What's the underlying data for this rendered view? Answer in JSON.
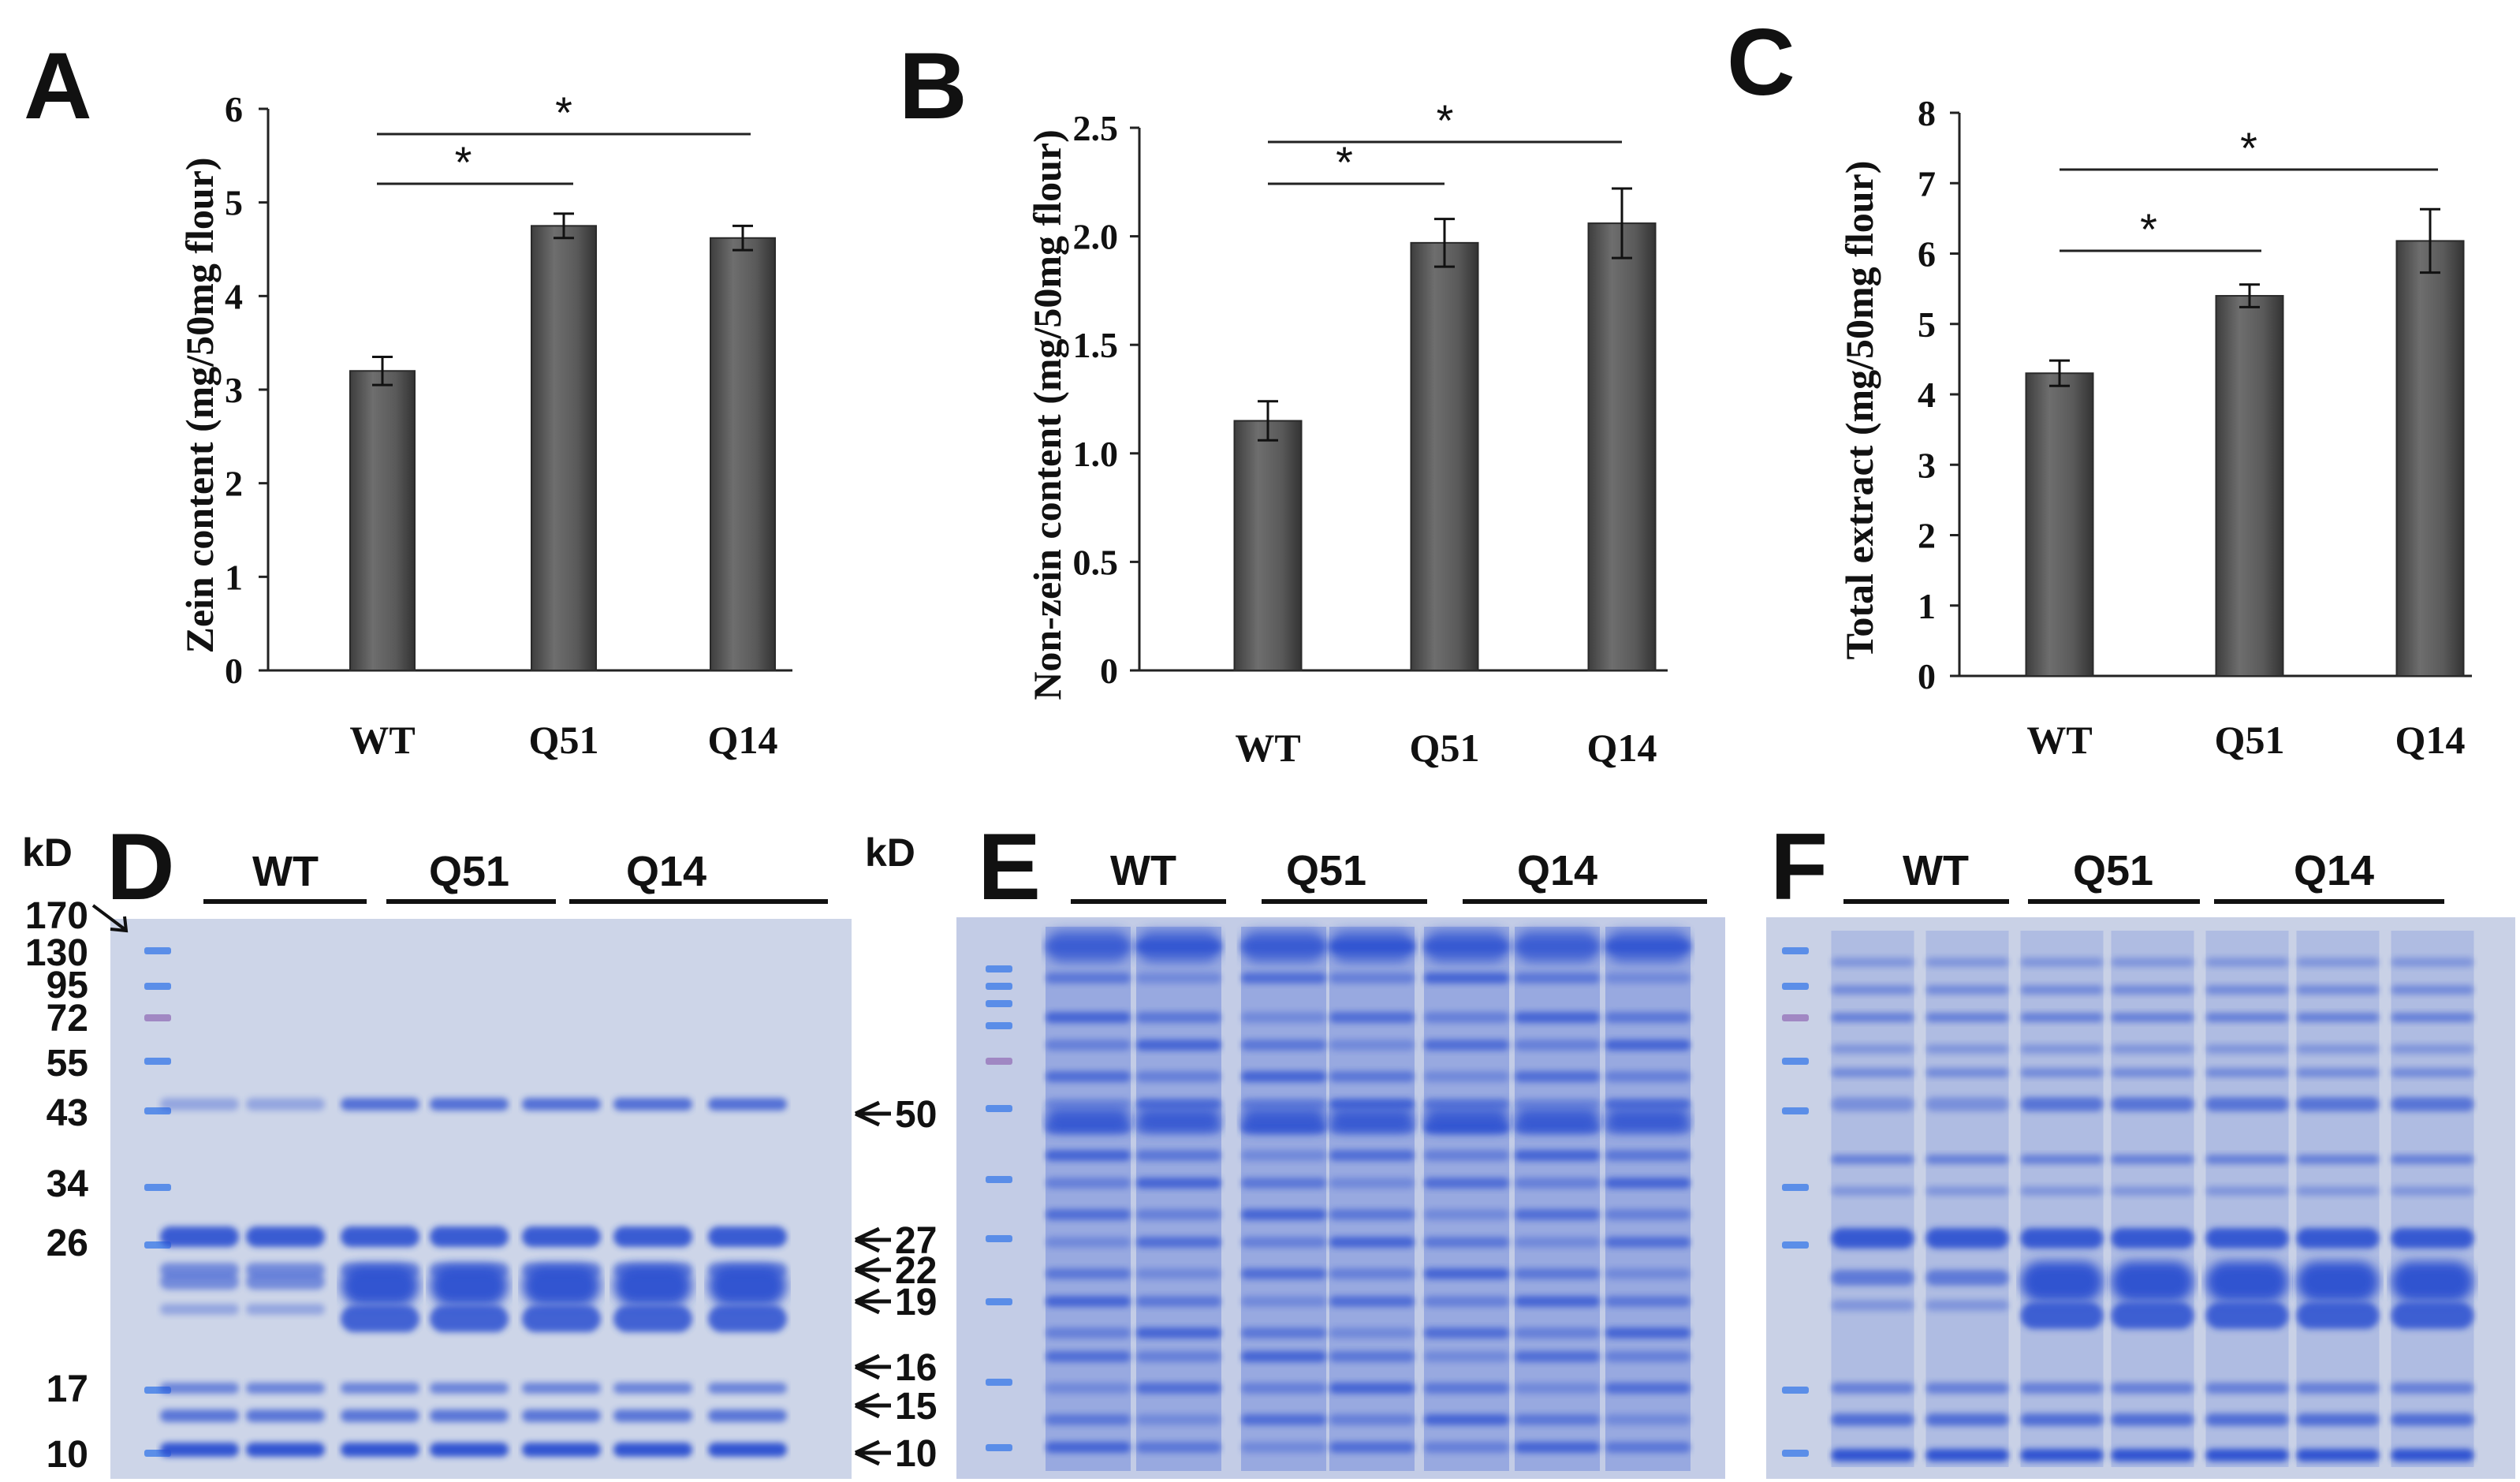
{
  "figure": {
    "colors": {
      "bar": "#5c5c5c",
      "axis": "#222222",
      "gel_background": "#c9d2e6",
      "band": "#2b4fd0",
      "ladder": "#4f86e8",
      "ladder_pink": "#9c7fbf"
    },
    "chart_data": [
      {
        "panel": "A",
        "type": "bar",
        "categories": [
          "WT",
          "Q51",
          "Q14"
        ],
        "values": [
          3.2,
          4.75,
          4.62
        ],
        "errors": [
          0.15,
          0.13,
          0.13
        ],
        "ylabel": "Zein content (mg/50mg flour)",
        "ylim": [
          0,
          6
        ],
        "yticks": [
          0,
          1,
          2,
          3,
          4,
          5,
          6
        ],
        "ytick_labels": [
          "0",
          "1",
          "2",
          "3",
          "4",
          "5",
          "6"
        ],
        "significance": [
          {
            "from": "WT",
            "to": "Q51",
            "label": "*"
          },
          {
            "from": "WT",
            "to": "Q14",
            "label": "*"
          }
        ]
      },
      {
        "panel": "B",
        "type": "bar",
        "categories": [
          "WT",
          "Q51",
          "Q14"
        ],
        "values": [
          1.15,
          1.97,
          2.06
        ],
        "errors": [
          0.09,
          0.11,
          0.16
        ],
        "ylabel": "Non-zein content (mg/50mg flour)",
        "ylim": [
          0,
          2.5
        ],
        "yticks": [
          0,
          0.5,
          1.0,
          1.5,
          2.0,
          2.5
        ],
        "ytick_labels": [
          "0",
          "0.5",
          "1.0",
          "1.5",
          "2.0",
          "2.5"
        ],
        "significance": [
          {
            "from": "WT",
            "to": "Q51",
            "label": "*"
          },
          {
            "from": "WT",
            "to": "Q14",
            "label": "*"
          }
        ]
      },
      {
        "panel": "C",
        "type": "bar",
        "categories": [
          "WT",
          "Q51",
          "Q14"
        ],
        "values": [
          4.3,
          5.4,
          6.18
        ],
        "errors": [
          0.18,
          0.16,
          0.45
        ],
        "ylabel": "Total extract (mg/50mg flour)",
        "ylim": [
          0,
          8
        ],
        "yticks": [
          0,
          1,
          2,
          3,
          4,
          5,
          6,
          7,
          8
        ],
        "ytick_labels": [
          "0",
          "1",
          "2",
          "3",
          "4",
          "5",
          "6",
          "7",
          "8"
        ],
        "significance": [
          {
            "from": "WT",
            "to": "Q51",
            "label": "*"
          },
          {
            "from": "WT",
            "to": "Q14",
            "label": "*"
          }
        ]
      }
    ],
    "gels": [
      {
        "panel": "D",
        "kd_label": "kD",
        "groups": [
          "WT",
          "Q51",
          "Q14"
        ],
        "markers": [
          "170",
          "130",
          "95",
          "72",
          "55",
          "43",
          "34",
          "26",
          "17",
          "10"
        ],
        "arrows": [
          "50",
          "27",
          "22",
          "19",
          "16",
          "15",
          "10"
        ]
      },
      {
        "panel": "E",
        "kd_label": "kD",
        "groups": [
          "WT",
          "Q51",
          "Q14"
        ]
      },
      {
        "panel": "F",
        "groups": [
          "WT",
          "Q51",
          "Q14"
        ]
      }
    ]
  }
}
